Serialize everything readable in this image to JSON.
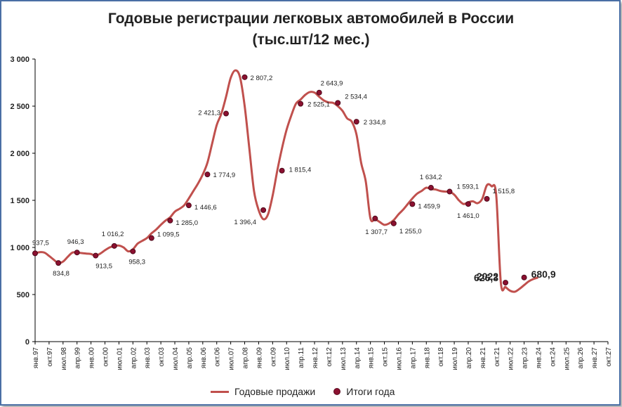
{
  "chart_data": {
    "type": "line",
    "title": "Годовые регистрации легковых автомобилей в России",
    "subtitle": "(тыс.шт/12 мес.)",
    "ylim": [
      0,
      3000
    ],
    "yticks": [
      "0",
      "500",
      "1 000",
      "1 500",
      "2 000",
      "2 500",
      "3 000"
    ],
    "ytick_values": [
      0,
      500,
      1000,
      1500,
      2000,
      2500,
      3000
    ],
    "xticks": [
      "янв.97",
      "окт.97",
      "июл.98",
      "апр.99",
      "янв.00",
      "окт.00",
      "июл.01",
      "апр.02",
      "янв.03",
      "окт.03",
      "июл.04",
      "апр.05",
      "янв.06",
      "окт.06",
      "июл.07",
      "апр.08",
      "янв.09",
      "окт.09",
      "июл.10",
      "апр.11",
      "янв.12",
      "окт.12",
      "июл.13",
      "апр.14",
      "янв.15",
      "окт.15",
      "июл.16",
      "апр.17",
      "янв.18",
      "окт.18",
      "июл.19",
      "апр.20",
      "янв.21",
      "окт.21",
      "июл.22",
      "апр.23",
      "янв.24",
      "окт.24",
      "июл.25",
      "апр.26",
      "янв.27",
      "окт.27"
    ],
    "grid": false,
    "legend_position": "bottom",
    "colors": {
      "line": "#c0504d",
      "marker": "#8b1030"
    },
    "series": [
      {
        "name": "Годовые продажи",
        "x": [
          1997.0,
          1997.25,
          1997.5,
          1997.75,
          1998.0,
          1998.25,
          1998.5,
          1998.75,
          1999.0,
          1999.25,
          1999.5,
          1999.75,
          2000.0,
          2000.25,
          2000.5,
          2000.75,
          2001.0,
          2001.25,
          2001.5,
          2001.75,
          2002.0,
          2002.25,
          2002.5,
          2002.75,
          2003.0,
          2003.25,
          2003.5,
          2003.75,
          2004.0,
          2004.25,
          2004.5,
          2004.75,
          2005.0,
          2005.25,
          2005.5,
          2005.75,
          2006.0,
          2006.25,
          2006.5,
          2006.75,
          2007.0,
          2007.25,
          2007.5,
          2007.75,
          2008.0,
          2008.25,
          2008.5,
          2008.75,
          2009.0,
          2009.25,
          2009.5,
          2009.75,
          2010.0,
          2010.25,
          2010.5,
          2010.75,
          2011.0,
          2011.25,
          2011.5,
          2011.75,
          2012.0,
          2012.25,
          2012.5,
          2012.75,
          2013.0,
          2013.25,
          2013.5,
          2013.75,
          2014.0,
          2014.25,
          2014.5,
          2014.75,
          2015.0,
          2015.25,
          2015.5,
          2015.75,
          2016.0,
          2016.25,
          2016.5,
          2016.75,
          2017.0,
          2017.25,
          2017.5,
          2017.75,
          2018.0,
          2018.25,
          2018.5,
          2018.75,
          2019.0,
          2019.25,
          2019.5,
          2019.75,
          2020.0,
          2020.25,
          2020.5,
          2020.75,
          2021.0,
          2021.25,
          2021.5,
          2021.75,
          2022.0,
          2022.25,
          2022.5,
          2022.75,
          2023.0,
          2023.25,
          2023.5,
          2023.75,
          2024.0
        ],
        "values": [
          937.5,
          950,
          945,
          910,
          870,
          834.8,
          850,
          900,
          945,
          946.3,
          940,
          935,
          930,
          913.5,
          935,
          970,
          1000,
          1016.2,
          1020,
          1000,
          958.3,
          980,
          1040,
          1070,
          1099.5,
          1150,
          1190,
          1240,
          1285,
          1320,
          1380,
          1410,
          1446.6,
          1520,
          1600,
          1680,
          1774.9,
          1900,
          2100,
          2300,
          2421.3,
          2600,
          2800,
          2880,
          2807.2,
          2500,
          2050,
          1600,
          1396.4,
          1300,
          1350,
          1550,
          1815.4,
          2050,
          2250,
          2400,
          2525.1,
          2570,
          2620,
          2650,
          2643.9,
          2600,
          2560,
          2540,
          2534.4,
          2500,
          2450,
          2370,
          2334.8,
          2200,
          1900,
          1700,
          1307.7,
          1300,
          1270,
          1240,
          1255,
          1290,
          1350,
          1400,
          1459.9,
          1520,
          1570,
          1600,
          1634.2,
          1620,
          1615,
          1600,
          1593.1,
          1590,
          1560,
          1500,
          1461,
          1480,
          1490,
          1470,
          1515.8,
          1660,
          1650,
          1560,
          626.3,
          580,
          540,
          530,
          560,
          600,
          640,
          665,
          680.9
        ]
      }
    ],
    "markers": {
      "name": "Итоги года",
      "points": [
        {
          "x": 1997.0,
          "y": 937.5,
          "label": "937,5"
        },
        {
          "x": 1998.25,
          "y": 834.8,
          "label": "834,8"
        },
        {
          "x": 1999.25,
          "y": 946.3,
          "label": "946,3"
        },
        {
          "x": 2000.25,
          "y": 913.5,
          "label": "913,5"
        },
        {
          "x": 2001.25,
          "y": 1016.2,
          "label": "1 016,2"
        },
        {
          "x": 2002.25,
          "y": 958.3,
          "label": "958,3"
        },
        {
          "x": 2003.25,
          "y": 1099.5,
          "label": "1 099,5"
        },
        {
          "x": 2004.25,
          "y": 1285.0,
          "label": "1 285,0"
        },
        {
          "x": 2005.25,
          "y": 1446.6,
          "label": "1 446,6"
        },
        {
          "x": 2006.25,
          "y": 1774.9,
          "label": "1 774,9"
        },
        {
          "x": 2007.25,
          "y": 2421.3,
          "label": "2 421,3"
        },
        {
          "x": 2008.25,
          "y": 2807.2,
          "label": "2 807,2"
        },
        {
          "x": 2009.25,
          "y": 1396.4,
          "label": "1 396,4"
        },
        {
          "x": 2010.25,
          "y": 1815.4,
          "label": "1 815,4"
        },
        {
          "x": 2011.25,
          "y": 2525.1,
          "label": "2 525,1"
        },
        {
          "x": 2012.25,
          "y": 2643.9,
          "label": "2 643,9"
        },
        {
          "x": 2013.25,
          "y": 2534.4,
          "label": "2 534,4"
        },
        {
          "x": 2014.25,
          "y": 2334.8,
          "label": "2 334,8"
        },
        {
          "x": 2015.25,
          "y": 1307.7,
          "label": "1 307,7"
        },
        {
          "x": 2016.25,
          "y": 1255.0,
          "label": "1 255,0"
        },
        {
          "x": 2017.25,
          "y": 1459.9,
          "label": "1 459,9"
        },
        {
          "x": 2018.25,
          "y": 1634.2,
          "label": "1 634,2"
        },
        {
          "x": 2019.25,
          "y": 1593.1,
          "label": "1 593,1"
        },
        {
          "x": 2020.25,
          "y": 1461.0,
          "label": "1 461,0"
        },
        {
          "x": 2021.25,
          "y": 1515.8,
          "label": "1 515,8"
        },
        {
          "x": 2022.25,
          "y": 626.3,
          "label": "626,3"
        },
        {
          "x": 2023.25,
          "y": 680.9,
          "label": "680,9"
        }
      ]
    },
    "annotations": [
      {
        "text": "2022"
      }
    ]
  }
}
